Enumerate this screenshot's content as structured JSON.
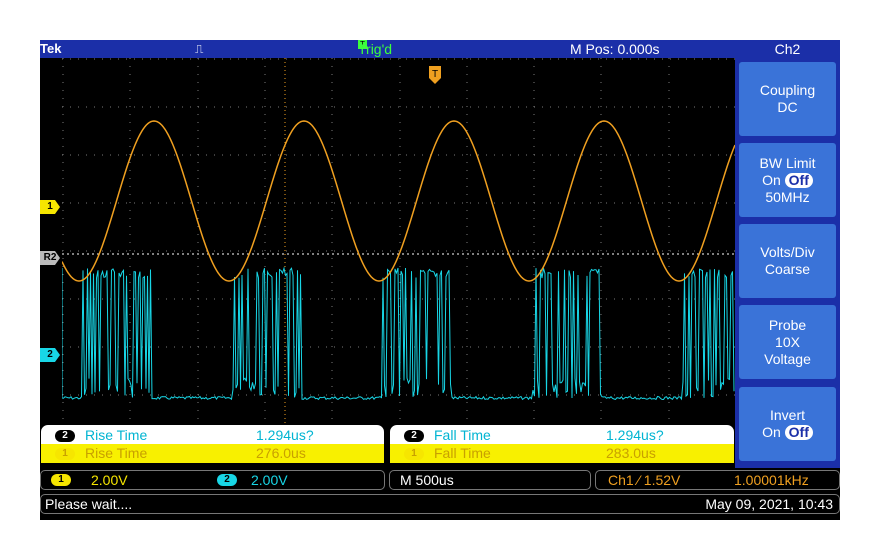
{
  "header": {
    "brand": "Tek",
    "acq_symbol": "⎍",
    "trigger_status": "Trig'd",
    "trigger_icon": "T",
    "m_pos": "M Pos: 0.000s"
  },
  "markers": {
    "ch1": "1",
    "ch2": "2",
    "ref2": "R2"
  },
  "menu": {
    "title": "Ch2",
    "buttons": [
      {
        "line1": "Coupling",
        "line2": "DC"
      },
      {
        "line1": "BW Limit",
        "on": "On",
        "off": "Off",
        "line3": "50MHz"
      },
      {
        "line1": "Volts/Div",
        "line2": "Coarse"
      },
      {
        "line1": "Probe",
        "line2": "10X",
        "line3": "Voltage"
      },
      {
        "line1": "Invert",
        "on": "On",
        "off": "Off"
      }
    ]
  },
  "measurements": {
    "left": {
      "ch2": {
        "chip": "2",
        "label": "Rise Time",
        "value": "1.294us?"
      },
      "ch1": {
        "chip": "1",
        "label": "Rise Time",
        "value": "276.0us"
      }
    },
    "right": {
      "ch2": {
        "chip": "2",
        "label": "Fall Time",
        "value": "1.294us?"
      },
      "ch1": {
        "chip": "1",
        "label": "Fall Time",
        "value": "283.0us"
      }
    }
  },
  "status": {
    "ch1_chip": "1",
    "ch1_scale": "2.00V",
    "ch2_chip": "2",
    "ch2_scale": "2.00V",
    "timebase": "M 500us",
    "trigger": "Ch1 ⁄ 1.52V",
    "frequency": "1.00001kHz",
    "message": "Please wait....",
    "datetime": "May 09, 2021, 10:43"
  },
  "colors": {
    "ch1": "#f0a020",
    "ch2": "#18d6e6",
    "bezel": "#1b2fa8",
    "button": "#3a73d8"
  }
}
